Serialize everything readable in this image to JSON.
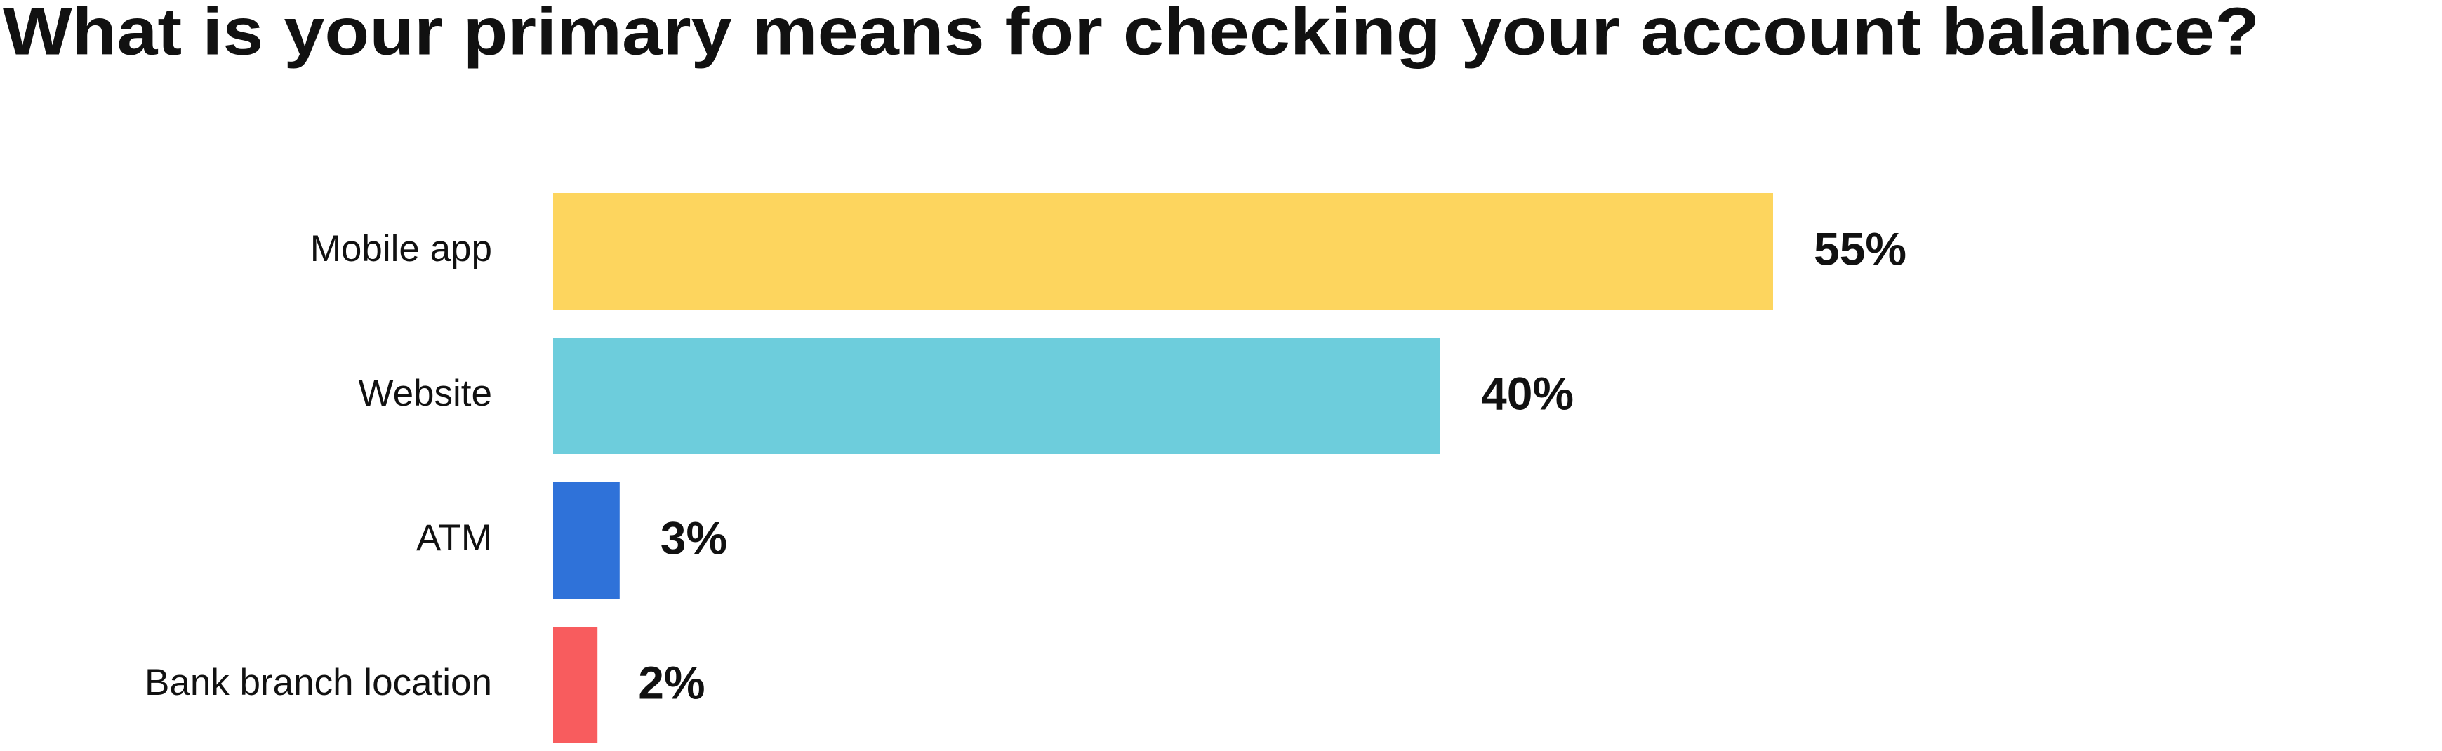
{
  "chart_data": {
    "type": "bar",
    "title": "What is your primary means for checking your account balance?",
    "categories": [
      "Mobile app",
      "Website",
      "ATM",
      "Bank branch location"
    ],
    "values": [
      55,
      40,
      3,
      2
    ],
    "value_labels": [
      "55%",
      "40%",
      "3%",
      "2%"
    ],
    "colors": [
      "#fdd55e",
      "#6dcddc",
      "#2f72d9",
      "#f85c5e"
    ]
  }
}
